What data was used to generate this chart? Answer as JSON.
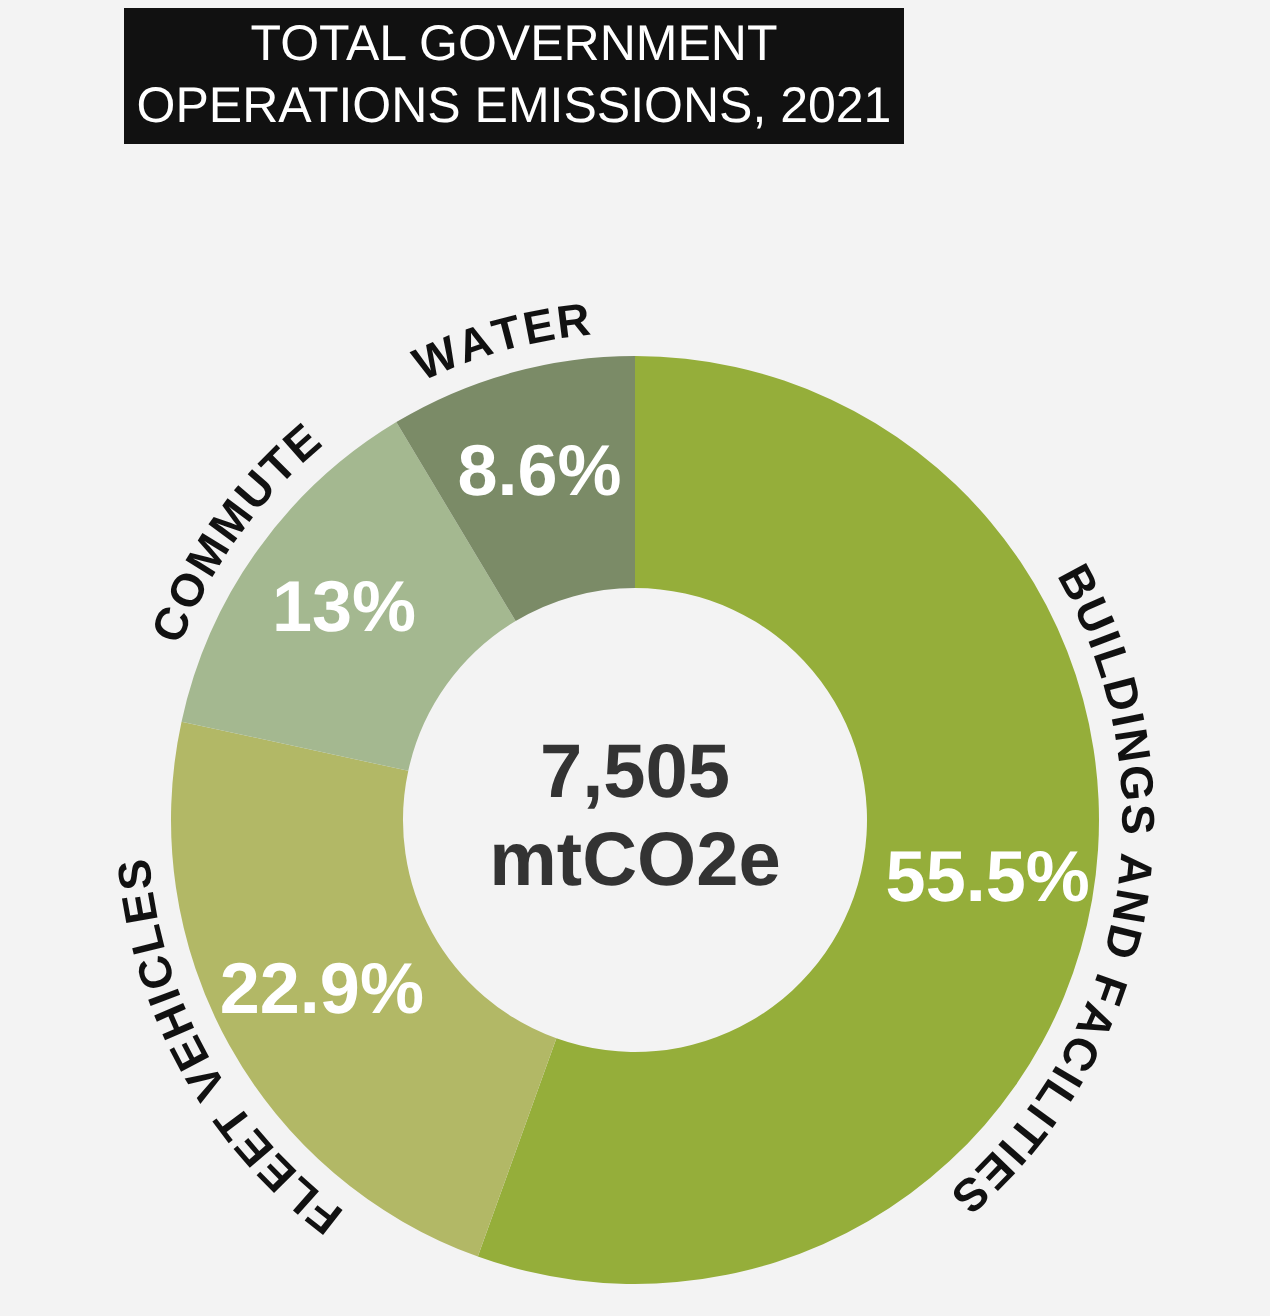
{
  "chart_data": {
    "type": "donut",
    "title": "TOTAL GOVERNMENT OPERATIONS EMISSIONS, 2021",
    "categories": [
      "BUILDINGS AND FACILITIES",
      "FLEET VEHICLES",
      "COMMUTE",
      "WATER"
    ],
    "values": [
      55.5,
      22.9,
      13,
      8.6
    ],
    "colors": [
      "#95ae3a",
      "#b2b866",
      "#a4b890",
      "#7b8b67"
    ],
    "value_labels": [
      "55.5%",
      "22.9%",
      "13%",
      "8.6%"
    ],
    "annotations": [
      "7,505",
      "mtCO2e"
    ],
    "legend": false
  }
}
